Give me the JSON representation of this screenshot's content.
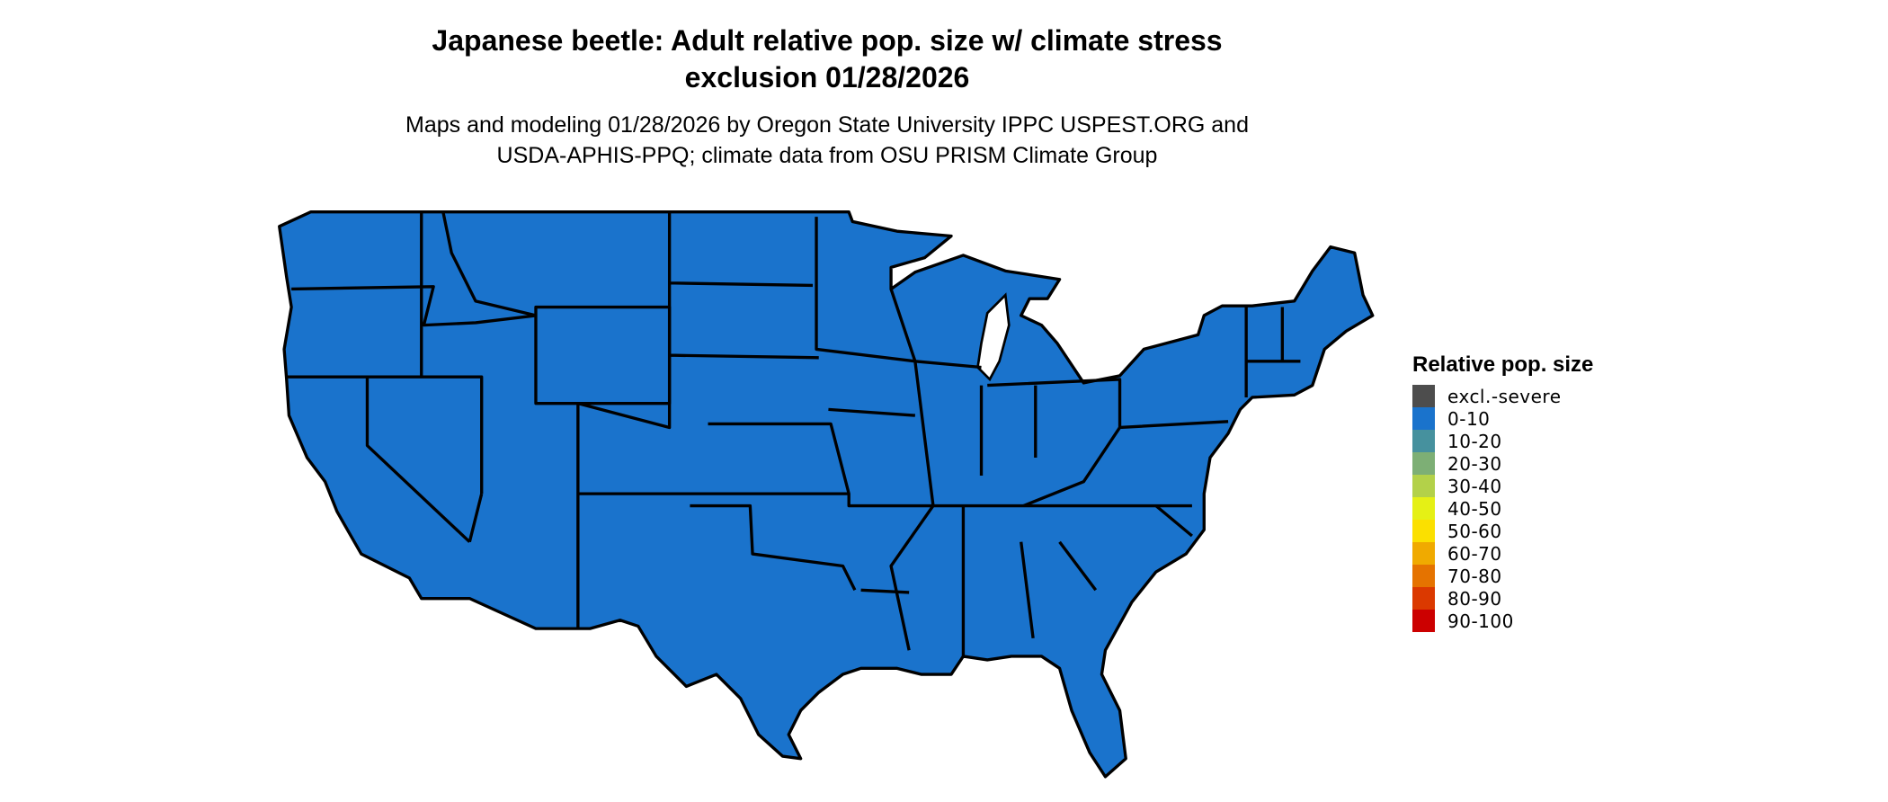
{
  "title": {
    "line1": "Japanese beetle: Adult relative pop. size w/ climate stress",
    "line2": "exclusion 01/28/2026"
  },
  "subtitle": {
    "line1": "Maps and modeling 01/28/2026 by Oregon State University IPPC USPEST.ORG and",
    "line2": "USDA-APHIS-PPQ; climate data from OSU PRISM Climate Group"
  },
  "map": {
    "region": "contiguous-united-states",
    "fill_category": "0-10",
    "fill_color": "#1a73cc",
    "border_color": "#000000"
  },
  "legend": {
    "title": "Relative pop. size",
    "items": [
      {
        "label": "excl.-severe",
        "color": "#4d4d4d"
      },
      {
        "label": "0-10",
        "color": "#1a73cc"
      },
      {
        "label": "10-20",
        "color": "#46919e"
      },
      {
        "label": "20-30",
        "color": "#7daf75"
      },
      {
        "label": "30-40",
        "color": "#b3d149"
      },
      {
        "label": "40-50",
        "color": "#e5f015"
      },
      {
        "label": "50-60",
        "color": "#fbe000"
      },
      {
        "label": "60-70",
        "color": "#f0aa00"
      },
      {
        "label": "70-80",
        "color": "#e57300"
      },
      {
        "label": "80-90",
        "color": "#db3900"
      },
      {
        "label": "90-100",
        "color": "#cc0000"
      }
    ]
  }
}
